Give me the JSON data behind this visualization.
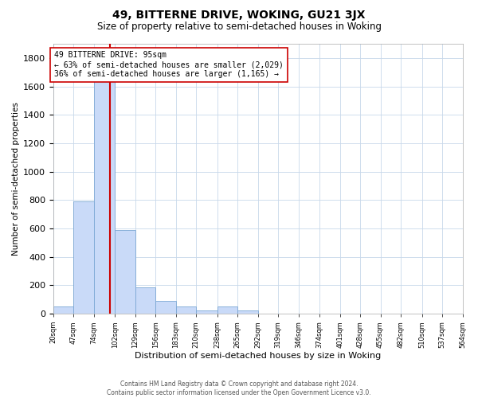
{
  "title": "49, BITTERNE DRIVE, WOKING, GU21 3JX",
  "subtitle": "Size of property relative to semi-detached houses in Woking",
  "xlabel": "Distribution of semi-detached houses by size in Woking",
  "ylabel": "Number of semi-detached properties",
  "footer_line1": "Contains HM Land Registry data © Crown copyright and database right 2024.",
  "footer_line2": "Contains public sector information licensed under the Open Government Licence v3.0.",
  "annotation_title": "49 BITTERNE DRIVE: 95sqm",
  "annotation_line1": "← 63% of semi-detached houses are smaller (2,029)",
  "annotation_line2": "36% of semi-detached houses are larger (1,165) →",
  "property_size_sqm": 95,
  "bar_color": "#c9daf8",
  "bar_edge_color": "#7ba7d4",
  "grid_color": "#c8d8ea",
  "vline_color": "#cc0000",
  "annotation_box_edge": "#cc0000",
  "background_color": "#ffffff",
  "ylim": [
    0,
    1900
  ],
  "yticks": [
    0,
    200,
    400,
    600,
    800,
    1000,
    1200,
    1400,
    1600,
    1800
  ],
  "bin_edges": [
    20,
    47,
    74,
    102,
    129,
    156,
    183,
    210,
    238,
    265,
    292,
    319,
    346,
    374,
    401,
    428,
    455,
    482,
    510,
    537,
    564
  ],
  "bin_labels": [
    "20sqm",
    "47sqm",
    "74sqm",
    "102sqm",
    "129sqm",
    "156sqm",
    "183sqm",
    "210sqm",
    "238sqm",
    "265sqm",
    "292sqm",
    "319sqm",
    "346sqm",
    "374sqm",
    "401sqm",
    "428sqm",
    "455sqm",
    "482sqm",
    "510sqm",
    "537sqm",
    "564sqm"
  ],
  "counts": [
    48,
    790,
    1680,
    590,
    185,
    88,
    50,
    22,
    50,
    22,
    0,
    0,
    0,
    0,
    0,
    0,
    0,
    0,
    0,
    0
  ],
  "title_fontsize": 10,
  "subtitle_fontsize": 8.5,
  "ylabel_fontsize": 7.5,
  "xlabel_fontsize": 8,
  "ytick_fontsize": 8,
  "xtick_fontsize": 6,
  "annotation_fontsize": 7,
  "footer_fontsize": 5.5
}
